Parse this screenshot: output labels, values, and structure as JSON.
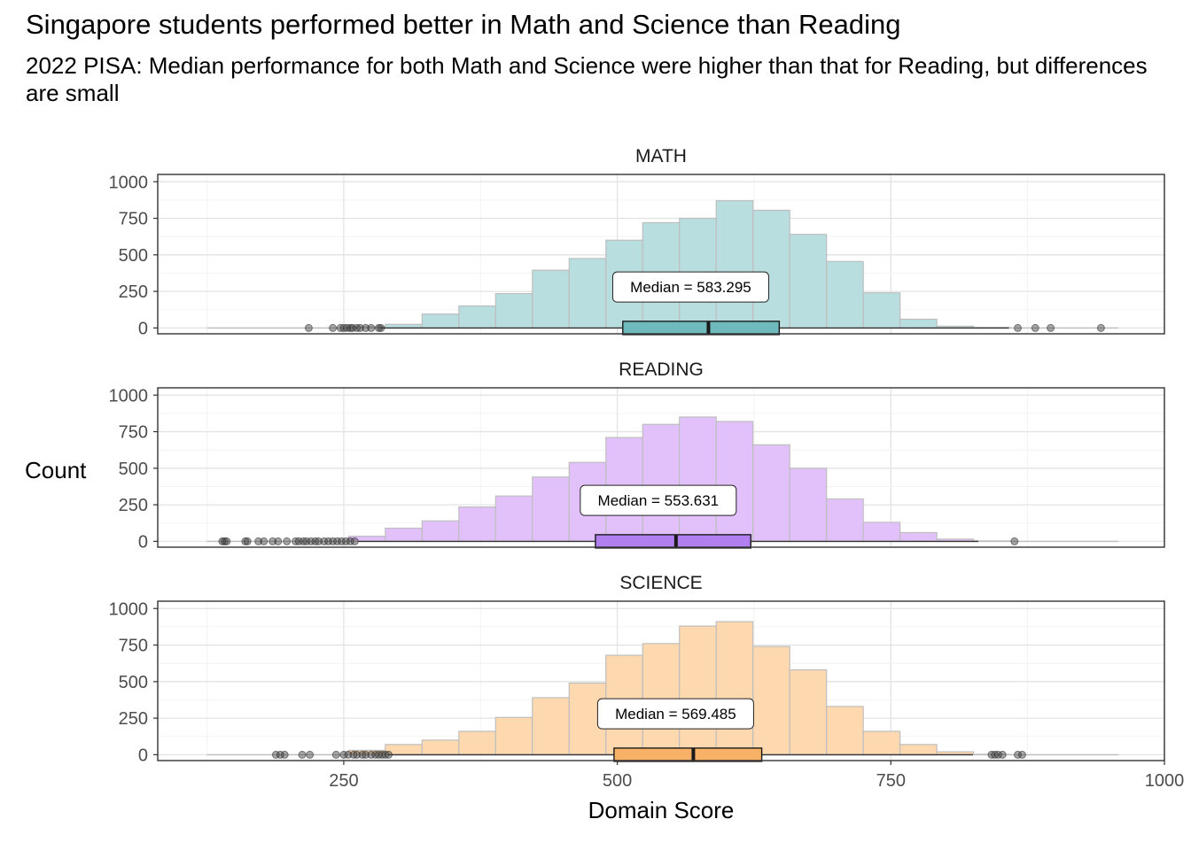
{
  "title": "Singapore students performed better in Math and Science than Reading",
  "subtitle": "2022 PISA: Median performance for both Math and Science were higher than that for Reading, but differences are small",
  "chart_data": {
    "type": "histogram-boxplot",
    "xlabel": "Domain Score",
    "ylabel": "Count",
    "xlim": [
      80,
      1000
    ],
    "ylim": [
      -40,
      1050
    ],
    "xticks": [
      250,
      500,
      750,
      1000
    ],
    "yticks": [
      0,
      250,
      500,
      750,
      1000
    ],
    "bin_width": 33.6,
    "grid": true,
    "panels": [
      {
        "name": "MATH",
        "fill": "#b8dedf",
        "box_fill": "#6fbabc",
        "bins": [
          {
            "start": 254.4,
            "count": 8
          },
          {
            "start": 288.0,
            "count": 25
          },
          {
            "start": 321.6,
            "count": 95
          },
          {
            "start": 355.2,
            "count": 150
          },
          {
            "start": 388.8,
            "count": 235
          },
          {
            "start": 422.4,
            "count": 395
          },
          {
            "start": 456.0,
            "count": 475
          },
          {
            "start": 489.6,
            "count": 600
          },
          {
            "start": 523.2,
            "count": 720
          },
          {
            "start": 556.8,
            "count": 750
          },
          {
            "start": 590.4,
            "count": 870
          },
          {
            "start": 624.0,
            "count": 805
          },
          {
            "start": 657.6,
            "count": 640
          },
          {
            "start": 691.2,
            "count": 455
          },
          {
            "start": 724.8,
            "count": 240
          },
          {
            "start": 758.4,
            "count": 60
          },
          {
            "start": 792.0,
            "count": 12
          },
          {
            "start": 825.6,
            "count": 3
          }
        ],
        "box": {
          "q1": 505,
          "median": 583.295,
          "q3": 648,
          "whisker_low": 283,
          "whisker_high": 858
        },
        "outliers": [
          218,
          240,
          247,
          250,
          253,
          256,
          258,
          262,
          265,
          270,
          275,
          282,
          284,
          866,
          882,
          896,
          942
        ],
        "line_range": [
          125,
          958
        ],
        "median_label": "Median =  583.295"
      },
      {
        "name": "READING",
        "fill": "#e2c1fb",
        "box_fill": "#b17ff0",
        "bins": [
          {
            "start": 254.4,
            "count": 35
          },
          {
            "start": 288.0,
            "count": 90
          },
          {
            "start": 321.6,
            "count": 140
          },
          {
            "start": 355.2,
            "count": 235
          },
          {
            "start": 388.8,
            "count": 310
          },
          {
            "start": 422.4,
            "count": 440
          },
          {
            "start": 456.0,
            "count": 540
          },
          {
            "start": 489.6,
            "count": 710
          },
          {
            "start": 523.2,
            "count": 800
          },
          {
            "start": 556.8,
            "count": 850
          },
          {
            "start": 590.4,
            "count": 820
          },
          {
            "start": 624.0,
            "count": 660
          },
          {
            "start": 657.6,
            "count": 500
          },
          {
            "start": 691.2,
            "count": 290
          },
          {
            "start": 724.8,
            "count": 130
          },
          {
            "start": 758.4,
            "count": 60
          },
          {
            "start": 792.0,
            "count": 15
          },
          {
            "start": 825.6,
            "count": 3
          }
        ],
        "box": {
          "q1": 480,
          "median": 553.631,
          "q3": 622,
          "whisker_low": 263,
          "whisker_high": 830
        },
        "outliers": [
          139,
          141,
          143,
          160,
          162,
          172,
          177,
          185,
          190,
          198,
          206,
          209,
          213,
          216,
          220,
          224,
          227,
          232,
          236,
          240,
          244,
          248,
          252,
          256,
          260,
          863
        ],
        "line_range": [
          125,
          958
        ],
        "median_label": "Median =  553.631"
      },
      {
        "name": "SCIENCE",
        "fill": "#fed8ae",
        "box_fill": "#f7b267",
        "bins": [
          {
            "start": 254.4,
            "count": 30
          },
          {
            "start": 288.0,
            "count": 70
          },
          {
            "start": 321.6,
            "count": 100
          },
          {
            "start": 355.2,
            "count": 160
          },
          {
            "start": 388.8,
            "count": 255
          },
          {
            "start": 422.4,
            "count": 390
          },
          {
            "start": 456.0,
            "count": 490
          },
          {
            "start": 489.6,
            "count": 680
          },
          {
            "start": 523.2,
            "count": 760
          },
          {
            "start": 556.8,
            "count": 880
          },
          {
            "start": 590.4,
            "count": 910
          },
          {
            "start": 624.0,
            "count": 740
          },
          {
            "start": 657.6,
            "count": 580
          },
          {
            "start": 691.2,
            "count": 330
          },
          {
            "start": 724.8,
            "count": 160
          },
          {
            "start": 758.4,
            "count": 70
          },
          {
            "start": 792.0,
            "count": 20
          },
          {
            "start": 825.6,
            "count": 3
          }
        ],
        "box": {
          "q1": 497,
          "median": 569.485,
          "q3": 632,
          "whisker_low": 291,
          "whisker_high": 825
        },
        "outliers": [
          188,
          192,
          196,
          212,
          219,
          243,
          250,
          254,
          259,
          262,
          267,
          270,
          275,
          279,
          282,
          285,
          288,
          291,
          842,
          845,
          848,
          852,
          866,
          870
        ],
        "line_range": [
          125,
          958
        ],
        "median_label": "Median =  569.485"
      }
    ]
  }
}
